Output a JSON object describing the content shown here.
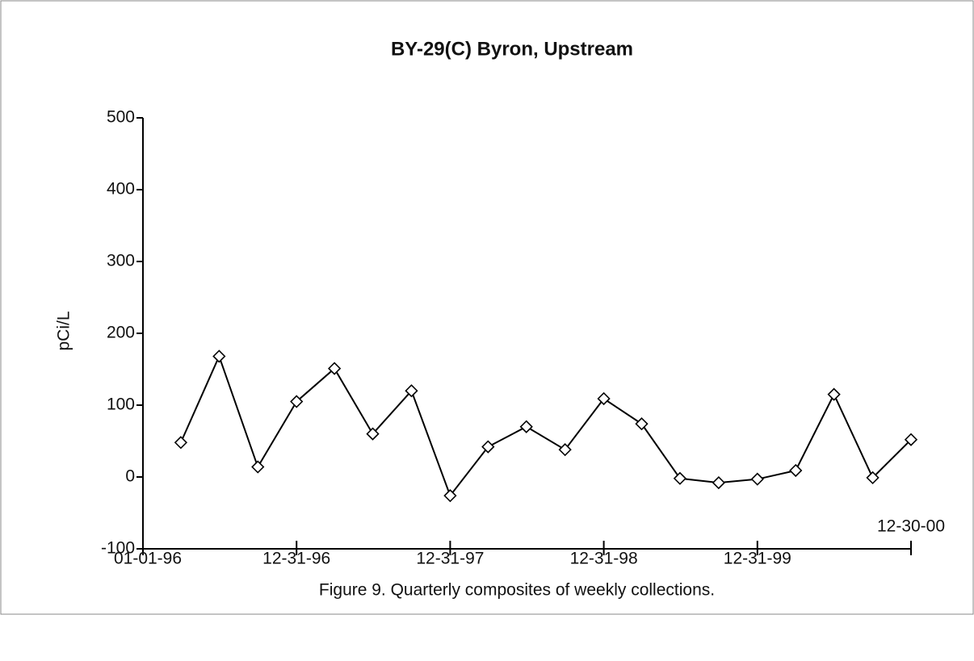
{
  "chart_data": {
    "type": "line",
    "title": "BY-29(C)  Byron, Upstream",
    "y_label": "pCi/L",
    "caption": "Figure 9.  Quarterly composites of weekly collections.",
    "x": [
      "03-31-96",
      "06-30-96",
      "09-30-96",
      "12-31-96",
      "03-31-97",
      "06-30-97",
      "09-30-97",
      "12-31-97",
      "03-31-98",
      "06-30-98",
      "09-30-98",
      "12-31-98",
      "03-31-99",
      "06-30-99",
      "09-30-99",
      "12-31-99",
      "03-31-00",
      "06-30-00",
      "09-30-00",
      "12-30-00"
    ],
    "series": [
      {
        "name": "BY-29(C)",
        "color": "#000000",
        "values": [
          48,
          168,
          14,
          105,
          151,
          60,
          120,
          -26,
          42,
          70,
          38,
          109,
          74,
          -2,
          -8,
          -3,
          9,
          115,
          -1,
          52
        ]
      }
    ],
    "xlim": [
      "01-01-96",
      "12-30-00"
    ],
    "xticks": [
      "01-01-96",
      "12-31-96",
      "12-31-97",
      "12-31-98",
      "12-31-99",
      "12-30-00"
    ],
    "ylim": [
      -100,
      500
    ],
    "yticks": [
      -100,
      0,
      100,
      200,
      300,
      400,
      500
    ]
  }
}
